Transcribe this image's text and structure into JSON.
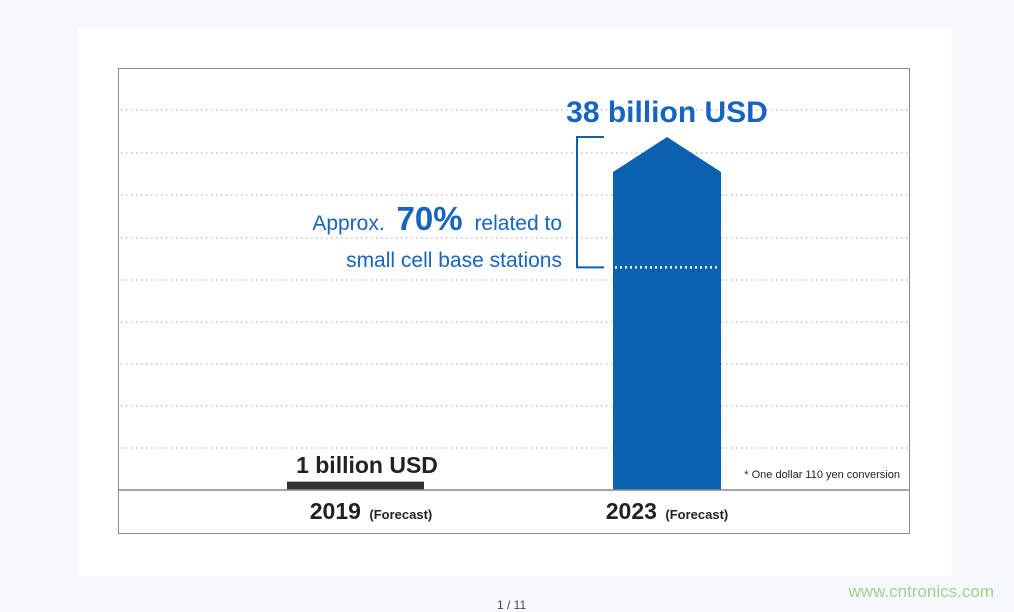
{
  "chart_data": {
    "type": "bar",
    "categories": [
      "2019",
      "2023"
    ],
    "category_notes": [
      "(Forecast)",
      "(Forecast)"
    ],
    "values": [
      1,
      38
    ],
    "unit": "billion USD",
    "data_labels": [
      "1 billion USD",
      "38 billion USD"
    ],
    "annotation": {
      "prefix": "Approx.",
      "percent": "70%",
      "suffix": "related to",
      "line2": "small cell base stations",
      "share": 0.7
    },
    "footnote": "* One dollar 110 yen conversion",
    "grid": "dotted horizontal",
    "legend": "none"
  },
  "colors": {
    "bar_2023": "#0b60b0",
    "bar_2019": "#333333",
    "accent_text": "#1565c0",
    "grid": "#b8b8b8",
    "frame": "#8a8a8a"
  },
  "footer": {
    "watermark": "www.cntronics.com",
    "page_indicator": "1 / 11"
  }
}
